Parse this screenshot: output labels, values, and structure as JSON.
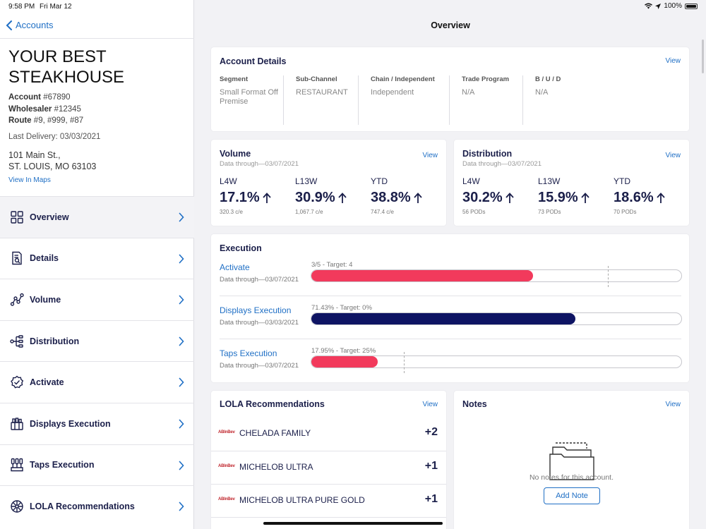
{
  "status": {
    "time": "9:58 PM",
    "date": "Fri Mar 12",
    "battery": "100%"
  },
  "sidebar": {
    "back_label": "Accounts",
    "account_name": "YOUR BEST STEAKHOUSE",
    "account_label": "Account",
    "account_value": "#67890",
    "wholesaler_label": "Wholesaler",
    "wholesaler_value": "#12345",
    "route_label": "Route",
    "route_value": "#9, #999, #87",
    "last_delivery": "Last Delivery: 03/03/2021",
    "address_line1": "101 Main St.,",
    "address_line2": "ST. LOUIS, MO 63103",
    "maps_link": "View In Maps",
    "nav": [
      {
        "label": "Overview",
        "icon": "grid-icon"
      },
      {
        "label": "Details",
        "icon": "document-search-icon"
      },
      {
        "label": "Volume",
        "icon": "line-graph-icon"
      },
      {
        "label": "Distribution",
        "icon": "hierarchy-icon"
      },
      {
        "label": "Activate",
        "icon": "badge-check-icon"
      },
      {
        "label": "Displays Execution",
        "icon": "display-stand-icon"
      },
      {
        "label": "Taps Execution",
        "icon": "taps-icon"
      },
      {
        "label": "LOLA Recommendations",
        "icon": "brain-icon"
      }
    ]
  },
  "main": {
    "title": "Overview",
    "account_details": {
      "title": "Account Details",
      "view": "View",
      "columns": [
        {
          "label": "Segment",
          "value": "Small Format Off Premise"
        },
        {
          "label": "Sub-Channel",
          "value": "RESTAURANT"
        },
        {
          "label": "Chain / Independent",
          "value": "Independent"
        },
        {
          "label": "Trade Program",
          "value": "N/A"
        },
        {
          "label": "B / U / D",
          "value": "N/A"
        }
      ]
    },
    "volume": {
      "title": "Volume",
      "view": "View",
      "subtitle": "Data through—03/07/2021",
      "metrics": [
        {
          "label": "L4W",
          "value": "17.1%",
          "sub": "320.3 c/e"
        },
        {
          "label": "L13W",
          "value": "30.9%",
          "sub": "1,067.7 c/e"
        },
        {
          "label": "YTD",
          "value": "38.8%",
          "sub": "747.4 c/e"
        }
      ]
    },
    "distribution": {
      "title": "Distribution",
      "view": "View",
      "subtitle": "Data through—03/07/2021",
      "metrics": [
        {
          "label": "L4W",
          "value": "30.2%",
          "sub": "56 PODs"
        },
        {
          "label": "L13W",
          "value": "15.9%",
          "sub": "73 PODs"
        },
        {
          "label": "YTD",
          "value": "18.6%",
          "sub": "70 PODs"
        }
      ]
    },
    "execution": {
      "title": "Execution",
      "rows": [
        {
          "label": "Activate",
          "sub": "Data through—03/07/2021",
          "target": "3/5 - Target: 4",
          "progress": 0.6,
          "target_fraction": 0.8,
          "color": "#f23a5c"
        },
        {
          "label": "Displays Execution",
          "sub": "Data through—03/03/2021",
          "target": "71.43% - Target: 0%",
          "progress": 0.7143,
          "target_fraction": 0,
          "color": "#0e1463"
        },
        {
          "label": "Taps Execution",
          "sub": "Data through—03/07/2021",
          "target": "17.95% - Target: 25%",
          "progress": 0.1795,
          "target_fraction": 0.25,
          "color": "#f23a5c"
        }
      ]
    },
    "lola": {
      "title": "LOLA Recommendations",
      "view": "View",
      "brand_logo": "ABInBev",
      "items": [
        {
          "name": "CHELADA FAMILY",
          "value": "+2"
        },
        {
          "name": "MICHELOB ULTRA",
          "value": "+1"
        },
        {
          "name": "MICHELOB ULTRA PURE GOLD",
          "value": "+1"
        }
      ]
    },
    "notes": {
      "title": "Notes",
      "view": "View",
      "empty": "No notes for this account.",
      "add_button": "Add Note"
    }
  }
}
